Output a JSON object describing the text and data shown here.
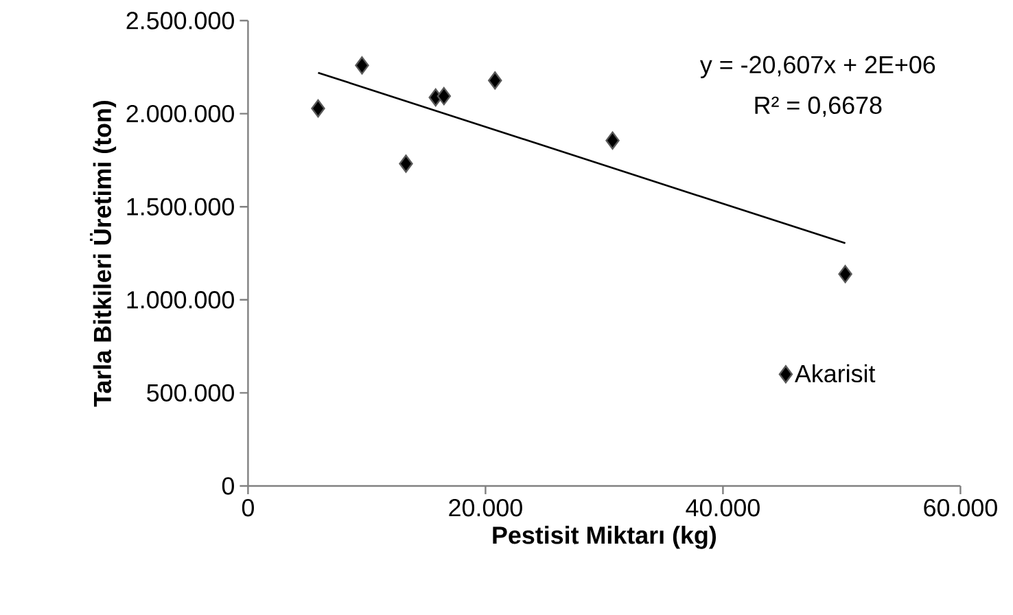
{
  "chart_data": {
    "type": "scatter",
    "xlabel": "Pestisit Miktarı (kg)",
    "ylabel": "Tarla Bitkileri Üretimi (ton)",
    "series": [
      {
        "name": "Akarisit",
        "color": "#000000",
        "marker": "diamond",
        "x": [
          5900,
          9600,
          13300,
          15800,
          16500,
          20800,
          30700,
          50300
        ],
        "values": [
          2028000,
          2259000,
          1731000,
          2087000,
          2094000,
          2178000,
          1856000,
          1138000
        ]
      },
      {
        "type": "line",
        "color": "#000000",
        "marker": "none",
        "x": [
          5900,
          50300
        ],
        "values": [
          2220000,
          1304000
        ]
      }
    ],
    "xlim": [
      0,
      60000
    ],
    "xticks": [
      0,
      {
        "value": 20000,
        "label": "20.000"
      },
      {
        "value": 40000,
        "label": "40.000"
      },
      {
        "value": 60000,
        "label": "60.000"
      }
    ],
    "ylim": [
      0,
      2500000
    ],
    "yticks": [
      0,
      {
        "value": 500000,
        "label": "500.000"
      },
      {
        "value": 1000000,
        "label": "1.000.000"
      },
      {
        "value": 1500000,
        "label": "1.500.000"
      },
      {
        "value": 2000000,
        "label": "2.000.000"
      },
      {
        "value": 2500000,
        "label": "2.500.000"
      }
    ],
    "grid": false,
    "legend": "bottom right",
    "annotations": [
      "y = -20,607x + 2E+06",
      "R² = 0,6678"
    ]
  }
}
